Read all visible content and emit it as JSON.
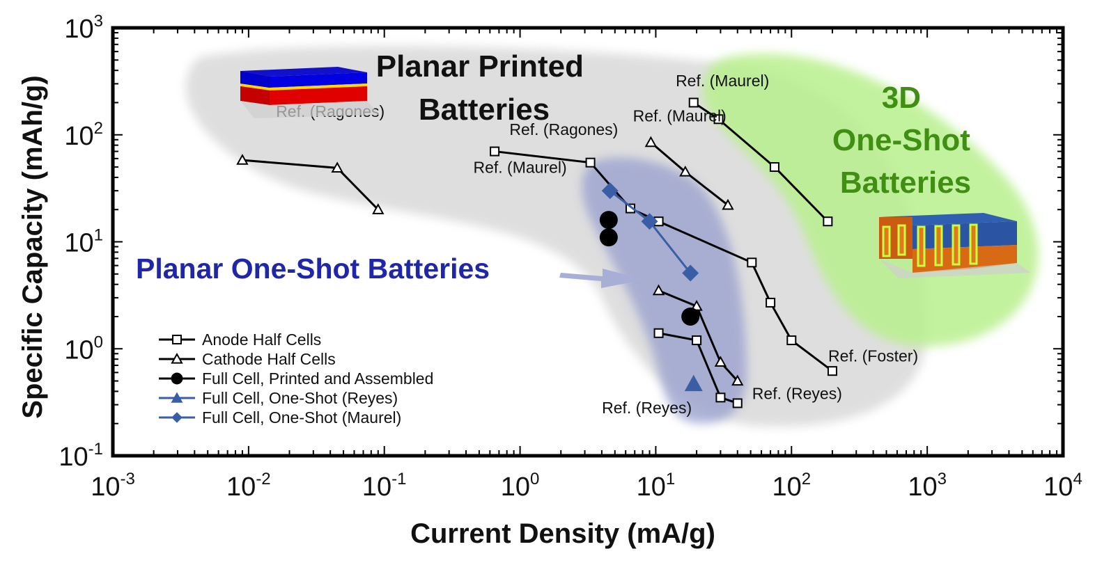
{
  "chart_data": {
    "type": "scatter",
    "x_scale": "log",
    "y_scale": "log",
    "xlim": [
      0.001,
      10000
    ],
    "ylim": [
      0.1,
      1000
    ],
    "xlabel": "Current Density (mA/g)",
    "ylabel": "Specific Capacity (mAh/g)",
    "x_ticks": [
      {
        "base": "10",
        "exp": "-3",
        "value": 0.001
      },
      {
        "base": "10",
        "exp": "-2",
        "value": 0.01
      },
      {
        "base": "10",
        "exp": "-1",
        "value": 0.1
      },
      {
        "base": "10",
        "exp": "0",
        "value": 1
      },
      {
        "base": "10",
        "exp": "1",
        "value": 10
      },
      {
        "base": "10",
        "exp": "2",
        "value": 100
      },
      {
        "base": "10",
        "exp": "3",
        "value": 1000
      },
      {
        "base": "10",
        "exp": "4",
        "value": 10000
      }
    ],
    "y_ticks": [
      {
        "base": "10",
        "exp": "-1",
        "value": 0.1
      },
      {
        "base": "10",
        "exp": "0",
        "value": 1
      },
      {
        "base": "10",
        "exp": "1",
        "value": 10
      },
      {
        "base": "10",
        "exp": "2",
        "value": 100
      },
      {
        "base": "10",
        "exp": "3",
        "value": 1000
      }
    ],
    "legend_position": "bottom-left",
    "legend": [
      {
        "label": "Anode Half Cells",
        "marker": "square-open",
        "color": "#000000"
      },
      {
        "label": "Cathode Half Cells",
        "marker": "triangle-open",
        "color": "#000000"
      },
      {
        "label": "Full Cell, Printed and Assembled",
        "marker": "circle-filled",
        "color": "#000000"
      },
      {
        "label": "Full Cell, One-Shot (Reyes)",
        "marker": "triangle-filled",
        "color": "#3a5ea6"
      },
      {
        "label": "Full Cell, One-Shot (Maurel)",
        "marker": "diamond-filled",
        "color": "#3a5ea6"
      }
    ],
    "series": [
      {
        "group": "cathode",
        "marker": "triangle-open",
        "color": "#000000",
        "points": [
          [
            0.009,
            58
          ],
          [
            0.045,
            49
          ],
          [
            0.09,
            20
          ]
        ]
      },
      {
        "group": "anode",
        "marker": "square-open",
        "color": "#000000",
        "points": [
          [
            0.65,
            70
          ],
          [
            3.3,
            55
          ],
          [
            6.5,
            20.5
          ],
          [
            10.5,
            15.5
          ],
          [
            51,
            6.4
          ],
          [
            70,
            2.7
          ],
          [
            100,
            1.2
          ],
          [
            200,
            0.62
          ]
        ]
      },
      {
        "group": "cathode",
        "marker": "triangle-open",
        "color": "#000000",
        "points": [
          [
            9.2,
            85
          ],
          [
            16.5,
            45
          ],
          [
            34,
            22
          ]
        ]
      },
      {
        "group": "anode",
        "marker": "square-open",
        "color": "#000000",
        "points": [
          [
            19,
            200
          ],
          [
            29,
            140
          ],
          [
            75,
            50
          ],
          [
            185,
            15.5
          ]
        ]
      },
      {
        "group": "cathode",
        "marker": "triangle-open",
        "color": "#000000",
        "points": [
          [
            10.5,
            3.5
          ],
          [
            20,
            2.5
          ],
          [
            30,
            0.75
          ],
          [
            40,
            0.5
          ]
        ]
      },
      {
        "group": "anode",
        "marker": "square-open",
        "color": "#000000",
        "points": [
          [
            10.5,
            1.4
          ],
          [
            20,
            1.2
          ],
          [
            30,
            0.35
          ],
          [
            40,
            0.31
          ]
        ]
      },
      {
        "group": "full-printed",
        "marker": "circle-filled",
        "color": "#000000",
        "line": false,
        "points": [
          [
            4.5,
            16
          ],
          [
            4.5,
            11
          ],
          [
            18,
            2
          ]
        ]
      },
      {
        "group": "one-shot-reyes",
        "marker": "triangle-filled",
        "color": "#3a5ea6",
        "line": false,
        "points": [
          [
            19,
            0.47
          ]
        ]
      },
      {
        "group": "one-shot-maurel",
        "marker": "diamond-filled",
        "color": "#3a5ea6",
        "points": [
          [
            4.6,
            30
          ],
          [
            9,
            15.5
          ],
          [
            18,
            5.1
          ]
        ]
      }
    ],
    "annotations": [
      {
        "text": "Ref. (Ragones)",
        "anchor_x": 0.04,
        "anchor_y": 147
      },
      {
        "text": "Ref. (Ragones)",
        "anchor_x": 2.1,
        "anchor_y": 100
      },
      {
        "text": "Ref. (Maurel)",
        "anchor_x": 1.0,
        "anchor_y": 44
      },
      {
        "text": "Ref. (Maurel)",
        "anchor_x": 31,
        "anchor_y": 285
      },
      {
        "text": "Ref. (Maurel)",
        "anchor_x": 15,
        "anchor_y": 133
      },
      {
        "text": "Ref. (Reyes)",
        "anchor_x": 8.6,
        "anchor_y": 0.25
      },
      {
        "text": "Ref. (Reyes)",
        "anchor_x": 110,
        "anchor_y": 0.34
      },
      {
        "text": "Ref. (Foster)",
        "anchor_x": 400,
        "anchor_y": 0.76
      }
    ],
    "regions": [
      {
        "id": "planar-printed",
        "label_lines": [
          "Planar Printed",
          "Batteries"
        ],
        "color": "#d9d9d9"
      },
      {
        "id": "planar-one-shot",
        "label_lines": [
          "Planar One-Shot Batteries"
        ],
        "color": "#9ba3cf"
      },
      {
        "id": "3d-one-shot",
        "label_lines": [
          "3D",
          "One-Shot",
          "Batteries"
        ],
        "color": "#b9f08e"
      }
    ]
  },
  "colors": {
    "planar_region": "#d9d9d9",
    "one_shot_region": "#9ba3cf",
    "three_d_region": "#b9f08e",
    "planar_one_shot_text": "#1f27a8",
    "three_d_text": "#3f8f12",
    "one_shot_marker": "#3a5ea6"
  },
  "icons": {
    "planar_cell": "stacked-layer-battery-icon",
    "three_d_cell": "interdigitated-3d-battery-icon"
  }
}
